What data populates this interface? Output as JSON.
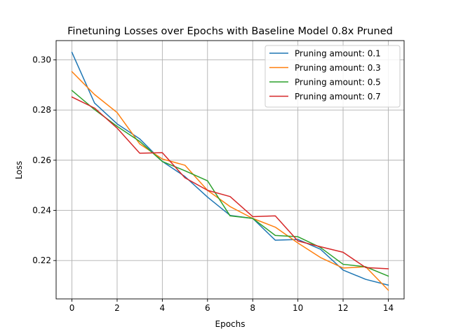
{
  "chart_data": {
    "type": "line",
    "title": "Finetuning Losses over Epochs with Baseline Model 0.8x Pruned",
    "xlabel": "Epochs",
    "ylabel": "Loss",
    "x": [
      0,
      1,
      2,
      3,
      4,
      5,
      6,
      7,
      8,
      9,
      10,
      11,
      12,
      13,
      14
    ],
    "xlim": [
      -0.7,
      14.7
    ],
    "ylim": [
      0.2047,
      0.3077
    ],
    "xticks": [
      0,
      2,
      4,
      6,
      8,
      10,
      12,
      14
    ],
    "yticks": [
      0.22,
      0.24,
      0.26,
      0.28,
      0.3
    ],
    "ytick_labels": [
      "0.22",
      "0.24",
      "0.26",
      "0.28",
      "0.30"
    ],
    "grid": true,
    "legend_position": "top-right",
    "series": [
      {
        "name": "Pruning amount: 0.1",
        "color": "#1f77b4",
        "values": [
          0.303,
          0.2828,
          0.2745,
          0.2685,
          0.2595,
          0.2535,
          0.2453,
          0.238,
          0.2368,
          0.2281,
          0.2284,
          0.2245,
          0.2162,
          0.2125,
          0.2102
        ]
      },
      {
        "name": "Pruning amount: 0.3",
        "color": "#ff7f0e",
        "values": [
          0.2953,
          0.2862,
          0.279,
          0.2665,
          0.2605,
          0.258,
          0.248,
          0.2415,
          0.2368,
          0.2333,
          0.227,
          0.2212,
          0.217,
          0.2175,
          0.2082
        ]
      },
      {
        "name": "Pruning amount: 0.5",
        "color": "#2ca02c",
        "values": [
          0.2878,
          0.2802,
          0.2735,
          0.2675,
          0.2595,
          0.2558,
          0.2518,
          0.2378,
          0.2368,
          0.23,
          0.2295,
          0.2252,
          0.2185,
          0.2175,
          0.2138
        ]
      },
      {
        "name": "Pruning amount: 0.7",
        "color": "#d62728",
        "values": [
          0.2852,
          0.2808,
          0.2728,
          0.2628,
          0.263,
          0.253,
          0.248,
          0.2455,
          0.2375,
          0.2378,
          0.2278,
          0.2255,
          0.2233,
          0.2172,
          0.2167
        ]
      }
    ]
  }
}
